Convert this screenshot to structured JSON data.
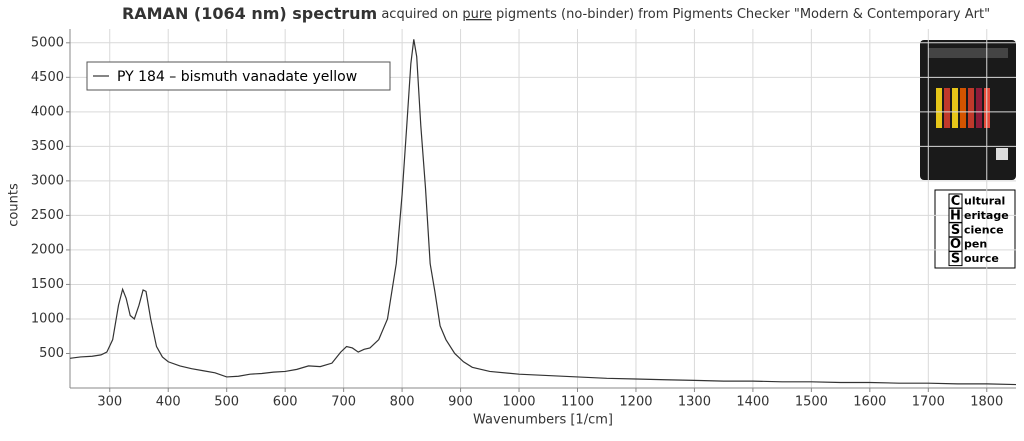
{
  "chart_data": {
    "type": "line",
    "title": {
      "bold": "RAMAN (1064 nm) spectrum",
      "pre": "acquired on",
      "underlined": "pure",
      "post": "pigments (no-binder) from Pigments Checker \"Modern & Contemporary Art\""
    },
    "x_label": "Wavenumbers [1/cm]",
    "y_label": "counts",
    "x": [
      232,
      250,
      270,
      285,
      295,
      305,
      315,
      322,
      328,
      335,
      342,
      350,
      357,
      362,
      370,
      380,
      390,
      400,
      420,
      440,
      460,
      480,
      500,
      520,
      540,
      560,
      580,
      600,
      620,
      640,
      660,
      680,
      695,
      705,
      715,
      725,
      735,
      745,
      760,
      775,
      790,
      800,
      808,
      815,
      820,
      825,
      832,
      840,
      848,
      856,
      865,
      875,
      890,
      905,
      920,
      950,
      1000,
      1050,
      1100,
      1150,
      1200,
      1250,
      1300,
      1350,
      1400,
      1450,
      1500,
      1550,
      1600,
      1650,
      1700,
      1750,
      1800,
      1850
    ],
    "series": [
      {
        "name": "PY 184 – bismuth vanadate yellow",
        "color": "#333333",
        "values": [
          430,
          450,
          460,
          480,
          520,
          700,
          1200,
          1430,
          1300,
          1050,
          1000,
          1200,
          1420,
          1400,
          1000,
          600,
          450,
          380,
          320,
          280,
          250,
          220,
          160,
          170,
          200,
          210,
          230,
          240,
          270,
          320,
          310,
          360,
          520,
          600,
          580,
          520,
          560,
          580,
          700,
          1000,
          1800,
          2800,
          3800,
          4700,
          5050,
          4800,
          3800,
          2900,
          1800,
          1400,
          900,
          700,
          500,
          380,
          300,
          240,
          200,
          180,
          160,
          140,
          130,
          120,
          110,
          100,
          100,
          90,
          90,
          80,
          80,
          70,
          70,
          60,
          60,
          50
        ]
      }
    ],
    "xlim": [
      232,
      1850
    ],
    "ylim": [
      0,
      5200
    ],
    "xticks": [
      300,
      400,
      500,
      600,
      700,
      800,
      900,
      1000,
      1100,
      1200,
      1300,
      1400,
      1500,
      1600,
      1700,
      1800
    ],
    "yticks": [
      500,
      1000,
      1500,
      2000,
      2500,
      3000,
      3500,
      4000,
      4500,
      5000
    ],
    "grid": true,
    "legend": "top-left",
    "logo": {
      "letters": [
        "C",
        "H",
        "S",
        "O",
        "S"
      ],
      "rests": [
        "ultural",
        "eritage",
        "cience",
        "pen",
        "ource"
      ]
    }
  }
}
